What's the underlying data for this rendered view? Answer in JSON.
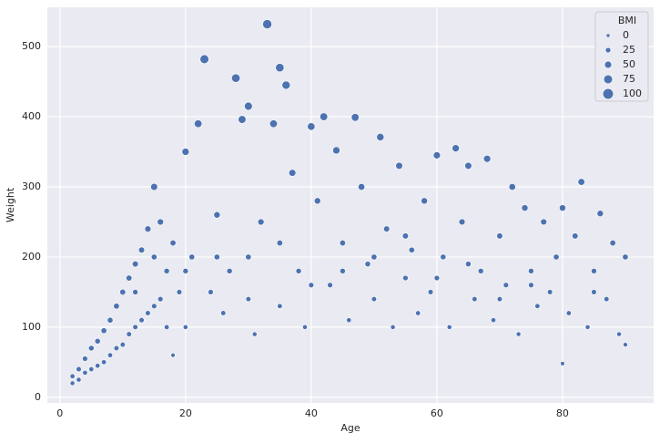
{
  "chart_data": {
    "type": "scatter",
    "x_label": "Age",
    "y_label": "Weight",
    "legend_title": "BMI",
    "legend_position": "upper right",
    "grid": true,
    "color": "#4c72b0",
    "xlim": [
      -2,
      94.5
    ],
    "ylim": [
      -8,
      556
    ],
    "xticks": [
      0,
      20,
      40,
      60,
      80
    ],
    "yticks": [
      0,
      100,
      200,
      300,
      400,
      500
    ],
    "size_legend": [
      0,
      25,
      50,
      75,
      100
    ],
    "x": [
      2,
      2,
      3,
      3,
      4,
      4,
      5,
      5,
      6,
      6,
      7,
      7,
      8,
      8,
      9,
      9,
      10,
      10,
      11,
      11,
      12,
      12,
      13,
      13,
      14,
      14,
      15,
      15,
      16,
      16,
      17,
      17,
      18,
      18,
      19,
      20,
      20,
      21,
      22,
      23,
      24,
      25,
      26,
      27,
      28,
      29,
      30,
      30,
      31,
      32,
      33,
      34,
      35,
      35,
      36,
      37,
      38,
      39,
      40,
      41,
      42,
      43,
      44,
      45,
      46,
      47,
      48,
      49,
      50,
      51,
      52,
      53,
      54,
      55,
      56,
      57,
      58,
      59,
      60,
      61,
      62,
      63,
      64,
      65,
      66,
      67,
      68,
      69,
      70,
      71,
      72,
      73,
      74,
      75,
      76,
      77,
      78,
      79,
      80,
      80,
      81,
      82,
      83,
      84,
      85,
      86,
      87,
      88,
      89,
      90,
      90,
      25,
      35,
      45,
      55,
      65,
      75,
      85,
      30,
      40,
      50,
      60,
      70,
      20,
      15,
      12
    ],
    "values": [
      20,
      30,
      25,
      40,
      35,
      55,
      40,
      70,
      45,
      80,
      50,
      95,
      60,
      110,
      70,
      130,
      75,
      150,
      90,
      170,
      100,
      190,
      110,
      210,
      120,
      240,
      130,
      300,
      140,
      250,
      100,
      180,
      60,
      220,
      150,
      350,
      100,
      200,
      390,
      482,
      150,
      260,
      120,
      180,
      455,
      396,
      415,
      200,
      90,
      250,
      532,
      390,
      470,
      130,
      445,
      320,
      180,
      100,
      386,
      280,
      400,
      160,
      352,
      220,
      110,
      399,
      300,
      190,
      140,
      371,
      240,
      100,
      330,
      170,
      210,
      120,
      280,
      150,
      345,
      200,
      100,
      355,
      250,
      330,
      140,
      180,
      340,
      110,
      230,
      160,
      300,
      90,
      270,
      180,
      130,
      250,
      150,
      200,
      270,
      48,
      120,
      230,
      307,
      100,
      180,
      262,
      140,
      220,
      90,
      200,
      75,
      200,
      220,
      180,
      230,
      190,
      160,
      150,
      140,
      160,
      200,
      170,
      140,
      180,
      200,
      150
    ],
    "sizes": [
      15,
      18,
      16,
      22,
      17,
      24,
      18,
      28,
      18,
      28,
      18,
      30,
      19,
      30,
      20,
      32,
      20,
      32,
      21,
      33,
      21,
      34,
      22,
      35,
      22,
      38,
      23,
      48,
      24,
      38,
      18,
      28,
      10,
      33,
      24,
      52,
      16,
      30,
      58,
      75,
      24,
      40,
      20,
      28,
      70,
      60,
      63,
      30,
      15,
      38,
      80,
      58,
      70,
      20,
      66,
      48,
      27,
      16,
      57,
      41,
      59,
      24,
      52,
      32,
      17,
      58,
      44,
      28,
      21,
      54,
      35,
      15,
      48,
      25,
      31,
      18,
      41,
      22,
      50,
      29,
      15,
      52,
      37,
      48,
      21,
      27,
      50,
      17,
      34,
      24,
      44,
      14,
      40,
      27,
      20,
      37,
      22,
      30,
      40,
      8,
      18,
      34,
      46,
      15,
      27,
      39,
      21,
      33,
      14,
      30,
      12,
      30,
      32,
      27,
      34,
      28,
      24,
      22,
      21,
      24,
      30,
      25,
      21,
      27,
      30,
      26
    ]
  }
}
